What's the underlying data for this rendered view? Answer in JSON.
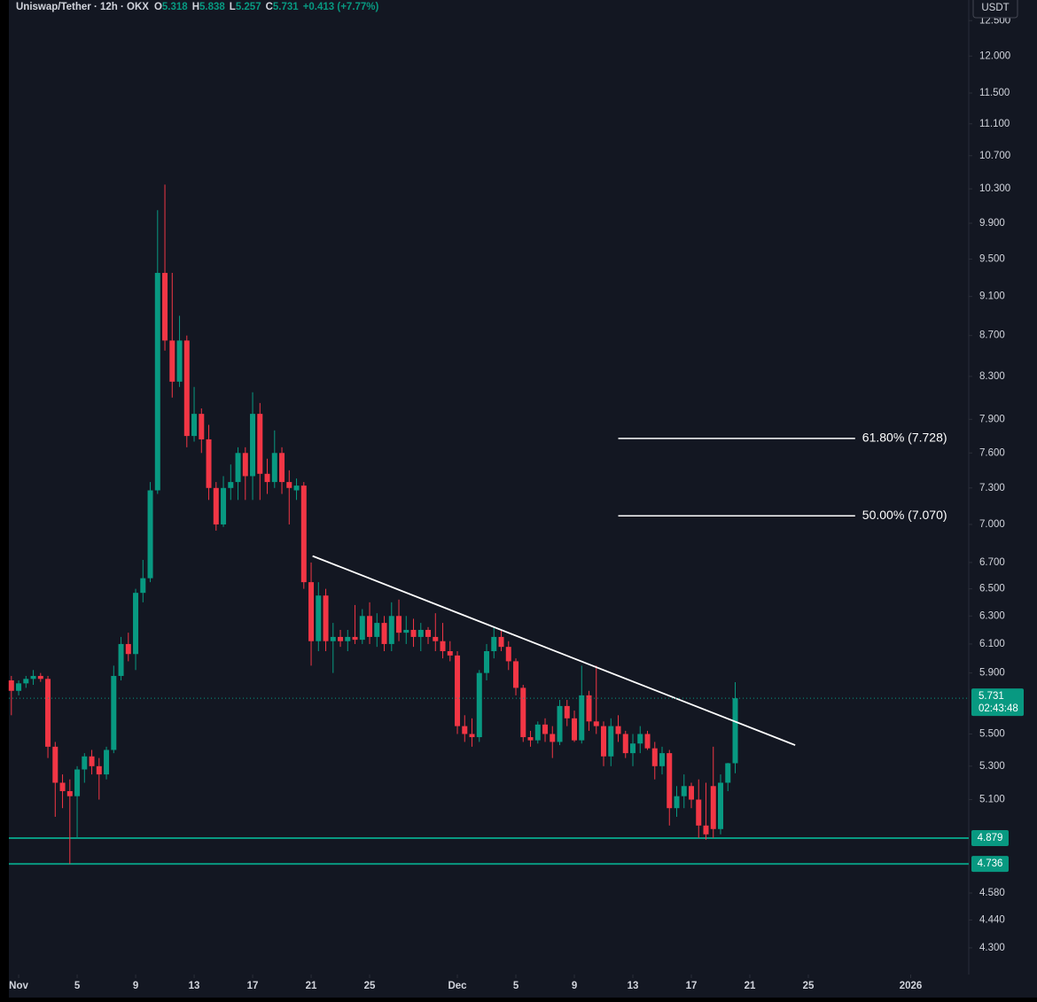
{
  "chart_data": {
    "type": "candlestick",
    "legend": {
      "symbol": "Uniswap/Tether · 12h · OKX",
      "fields": [
        {
          "key": "O",
          "value": 5.318
        },
        {
          "key": "H",
          "value": 5.838
        },
        {
          "key": "L",
          "value": 5.257
        },
        {
          "key": "C",
          "value": 5.731
        }
      ],
      "change": "+0.413 (+7.77%)"
    },
    "currency": "USDT",
    "up_color": "#089981",
    "down_color": "#f23645",
    "log_scale": true,
    "x": [
      -0.5,
      0,
      0.5,
      1,
      1.5,
      2,
      2.5,
      3,
      3.5,
      4,
      4.5,
      5,
      5.5,
      6,
      6.5,
      7,
      7.5,
      8,
      8.5,
      9,
      9.5,
      10,
      10.5,
      11,
      11.5,
      12,
      12.5,
      13,
      13.5,
      14,
      14.5,
      15,
      15.5,
      16,
      16.5,
      17,
      17.5,
      18,
      18.5,
      19,
      19.5,
      20,
      20.5,
      21,
      21.5,
      22,
      22.5,
      23,
      23.5,
      24,
      24.5,
      25,
      25.5,
      26,
      26.5,
      27,
      27.5,
      28,
      28.5,
      29,
      29.5,
      30,
      30.5,
      31,
      31.5,
      32,
      32.5,
      33,
      33.5,
      34,
      34.5,
      35,
      35.5,
      36,
      36.5,
      37,
      37.5,
      38,
      38.5,
      39,
      39.5,
      40,
      40.5,
      41,
      41.5,
      42,
      42.5,
      43,
      43.5,
      44,
      44.5,
      45,
      45.5,
      46,
      46.5,
      47,
      47.5,
      48,
      48.5,
      49
    ],
    "ohlc": [
      [
        5.85,
        5.88,
        5.62,
        5.78
      ],
      [
        5.78,
        5.85,
        5.75,
        5.83
      ],
      [
        5.83,
        5.88,
        5.8,
        5.86
      ],
      [
        5.86,
        5.92,
        5.82,
        5.88
      ],
      [
        5.88,
        5.9,
        5.84,
        5.86
      ],
      [
        5.86,
        5.88,
        5.35,
        5.42
      ],
      [
        5.42,
        5.45,
        5.0,
        5.2
      ],
      [
        5.2,
        5.25,
        5.05,
        5.15
      ],
      [
        5.15,
        5.22,
        4.736,
        5.12
      ],
      [
        5.12,
        5.3,
        4.879,
        5.28
      ],
      [
        5.28,
        5.38,
        5.2,
        5.36
      ],
      [
        5.36,
        5.4,
        5.25,
        5.3
      ],
      [
        5.3,
        5.35,
        5.1,
        5.25
      ],
      [
        5.25,
        5.42,
        5.22,
        5.4
      ],
      [
        5.4,
        5.95,
        5.38,
        5.88
      ],
      [
        5.88,
        6.15,
        5.85,
        6.1
      ],
      [
        6.1,
        6.18,
        5.98,
        6.03
      ],
      [
        6.03,
        6.5,
        5.92,
        6.47
      ],
      [
        6.47,
        6.72,
        6.4,
        6.58
      ],
      [
        6.58,
        7.35,
        6.55,
        7.28
      ],
      [
        7.28,
        10.05,
        7.25,
        9.35
      ],
      [
        9.35,
        10.35,
        8.55,
        8.65
      ],
      [
        8.65,
        9.35,
        8.1,
        8.25
      ],
      [
        8.25,
        8.9,
        8.2,
        8.65
      ],
      [
        8.65,
        8.7,
        7.65,
        7.75
      ],
      [
        7.75,
        8.2,
        7.7,
        7.95
      ],
      [
        7.95,
        8.0,
        7.6,
        7.72
      ],
      [
        7.72,
        7.85,
        7.2,
        7.3
      ],
      [
        7.3,
        7.35,
        6.95,
        7.0
      ],
      [
        7.0,
        7.4,
        6.98,
        7.3
      ],
      [
        7.3,
        7.5,
        7.2,
        7.35
      ],
      [
        7.35,
        7.65,
        7.2,
        7.6
      ],
      [
        7.6,
        7.65,
        7.2,
        7.4
      ],
      [
        7.4,
        8.15,
        7.2,
        7.95
      ],
      [
        7.95,
        8.05,
        7.2,
        7.42
      ],
      [
        7.42,
        7.55,
        7.25,
        7.35
      ],
      [
        7.35,
        7.8,
        7.3,
        7.6
      ],
      [
        7.6,
        7.65,
        7.25,
        7.35
      ],
      [
        7.35,
        7.45,
        7.0,
        7.3
      ],
      [
        7.28,
        7.38,
        7.2,
        7.32
      ],
      [
        7.32,
        7.35,
        6.5,
        6.55
      ],
      [
        6.55,
        6.7,
        5.95,
        6.12
      ],
      [
        6.12,
        6.55,
        6.05,
        6.45
      ],
      [
        6.45,
        6.5,
        6.05,
        6.12
      ],
      [
        6.12,
        6.25,
        5.9,
        6.15
      ],
      [
        6.15,
        6.2,
        6.08,
        6.12
      ],
      [
        6.12,
        6.2,
        6.05,
        6.15
      ],
      [
        6.15,
        6.38,
        6.1,
        6.13
      ],
      [
        6.13,
        6.35,
        6.1,
        6.3
      ],
      [
        6.3,
        6.4,
        6.1,
        6.15
      ],
      [
        6.15,
        6.32,
        6.08,
        6.25
      ],
      [
        6.25,
        6.3,
        6.05,
        6.1
      ],
      [
        6.1,
        6.4,
        6.05,
        6.3
      ],
      [
        6.3,
        6.42,
        6.12,
        6.18
      ],
      [
        6.18,
        6.3,
        6.1,
        6.2
      ],
      [
        6.2,
        6.28,
        6.08,
        6.15
      ],
      [
        6.15,
        6.25,
        6.05,
        6.2
      ],
      [
        6.2,
        6.22,
        6.1,
        6.15
      ],
      [
        6.15,
        6.32,
        6.05,
        6.12
      ],
      [
        6.12,
        6.25,
        6.0,
        6.05
      ],
      [
        6.05,
        6.12,
        5.98,
        6.02
      ],
      [
        6.02,
        6.05,
        5.5,
        5.55
      ],
      [
        5.55,
        5.62,
        5.45,
        5.5
      ],
      [
        5.5,
        5.6,
        5.42,
        5.48
      ],
      [
        5.48,
        5.92,
        5.45,
        5.9
      ],
      [
        5.9,
        6.1,
        5.85,
        6.05
      ],
      [
        6.05,
        6.22,
        6.0,
        6.15
      ],
      [
        6.15,
        6.2,
        6.05,
        6.08
      ],
      [
        6.08,
        6.12,
        5.92,
        5.98
      ],
      [
        5.98,
        6.0,
        5.75,
        5.8
      ],
      [
        5.8,
        5.82,
        5.45,
        5.48
      ],
      [
        5.48,
        5.52,
        5.42,
        5.46
      ],
      [
        5.46,
        5.58,
        5.44,
        5.56
      ],
      [
        5.56,
        5.6,
        5.45,
        5.5
      ],
      [
        5.5,
        5.55,
        5.35,
        5.45
      ],
      [
        5.45,
        5.72,
        5.43,
        5.68
      ],
      [
        5.68,
        5.72,
        5.55,
        5.6
      ],
      [
        5.6,
        5.65,
        5.45,
        5.46
      ],
      [
        5.46,
        5.95,
        5.44,
        5.75
      ],
      [
        5.75,
        5.78,
        5.52,
        5.58
      ],
      [
        5.58,
        5.95,
        5.5,
        5.55
      ],
      [
        5.55,
        5.58,
        5.3,
        5.36
      ],
      [
        5.36,
        5.6,
        5.3,
        5.55
      ],
      [
        5.55,
        5.62,
        5.45,
        5.5
      ],
      [
        5.5,
        5.52,
        5.35,
        5.38
      ],
      [
        5.38,
        5.5,
        5.3,
        5.44
      ],
      [
        5.44,
        5.55,
        5.38,
        5.5
      ],
      [
        5.5,
        5.52,
        5.4,
        5.41
      ],
      [
        5.41,
        5.45,
        5.22,
        5.3
      ],
      [
        5.3,
        5.42,
        5.25,
        5.38
      ],
      [
        5.38,
        5.4,
        4.95,
        5.05
      ],
      [
        5.05,
        5.18,
        5.0,
        5.12
      ],
      [
        5.12,
        5.25,
        5.05,
        5.18
      ],
      [
        5.18,
        5.2,
        5.05,
        5.1
      ],
      [
        5.1,
        5.22,
        4.88,
        4.95
      ],
      [
        4.95,
        5.2,
        4.87,
        4.9
      ],
      [
        5.18,
        5.42,
        4.88,
        4.93
      ],
      [
        4.93,
        5.25,
        4.9,
        5.2
      ],
      [
        5.2,
        5.32,
        5.15,
        5.318
      ],
      [
        5.318,
        5.838,
        5.257,
        5.731
      ]
    ],
    "xlim": [
      -0.67,
      64.97
    ],
    "ylim": [
      4.17,
      12.8
    ],
    "xticks": [
      {
        "value": 0,
        "label": "Nov"
      },
      {
        "value": 4,
        "label": "5"
      },
      {
        "value": 8,
        "label": "9"
      },
      {
        "value": 12,
        "label": "13"
      },
      {
        "value": 16,
        "label": "17"
      },
      {
        "value": 20,
        "label": "21"
      },
      {
        "value": 24,
        "label": "25"
      },
      {
        "value": 30,
        "label": "Dec"
      },
      {
        "value": 34,
        "label": "5"
      },
      {
        "value": 38,
        "label": "9"
      },
      {
        "value": 42,
        "label": "13"
      },
      {
        "value": 46,
        "label": "17"
      },
      {
        "value": 50,
        "label": "21"
      },
      {
        "value": 54,
        "label": "25"
      },
      {
        "value": 61,
        "label": "2026"
      }
    ],
    "yticks": [
      {
        "value": 4.3,
        "label": "4.300"
      },
      {
        "value": 4.44,
        "label": "4.440"
      },
      {
        "value": 4.58,
        "label": "4.580"
      },
      {
        "value": 5.1,
        "label": "5.100"
      },
      {
        "value": 5.3,
        "label": "5.300"
      },
      {
        "value": 5.5,
        "label": "5.500"
      },
      {
        "value": 5.9,
        "label": "5.900"
      },
      {
        "value": 6.1,
        "label": "6.100"
      },
      {
        "value": 6.3,
        "label": "6.300"
      },
      {
        "value": 6.5,
        "label": "6.500"
      },
      {
        "value": 6.7,
        "label": "6.700"
      },
      {
        "value": 7,
        "label": "7.000"
      },
      {
        "value": 7.3,
        "label": "7.300"
      },
      {
        "value": 7.6,
        "label": "7.600"
      },
      {
        "value": 7.9,
        "label": "7.900"
      },
      {
        "value": 8.3,
        "label": "8.300"
      },
      {
        "value": 8.7,
        "label": "8.700"
      },
      {
        "value": 9.1,
        "label": "9.100"
      },
      {
        "value": 9.5,
        "label": "9.500"
      },
      {
        "value": 9.9,
        "label": "9.900"
      },
      {
        "value": 10.3,
        "label": "10.300"
      },
      {
        "value": 10.7,
        "label": "10.700"
      },
      {
        "value": 11.1,
        "label": "11.100"
      },
      {
        "value": 11.5,
        "label": "11.500"
      },
      {
        "value": 12,
        "label": "12.000"
      },
      {
        "value": 12.5,
        "label": "12.500"
      }
    ],
    "last_price": {
      "value": 5.731,
      "countdown": "02:43:48"
    },
    "levels": [
      {
        "value": 4.879
      },
      {
        "value": 4.736
      }
    ],
    "level_color": "#089981",
    "trendline": {
      "x": [
        20.1,
        53.1
      ],
      "y": [
        6.75,
        5.43
      ],
      "color": "#ffffff"
    },
    "fib_levels": [
      {
        "label": "61.80% (7.728)",
        "value": 7.728,
        "x": [
          41,
          57.2
        ]
      },
      {
        "label": "50.00% (7.070)",
        "value": 7.07,
        "x": [
          41,
          57.2
        ]
      }
    ]
  }
}
